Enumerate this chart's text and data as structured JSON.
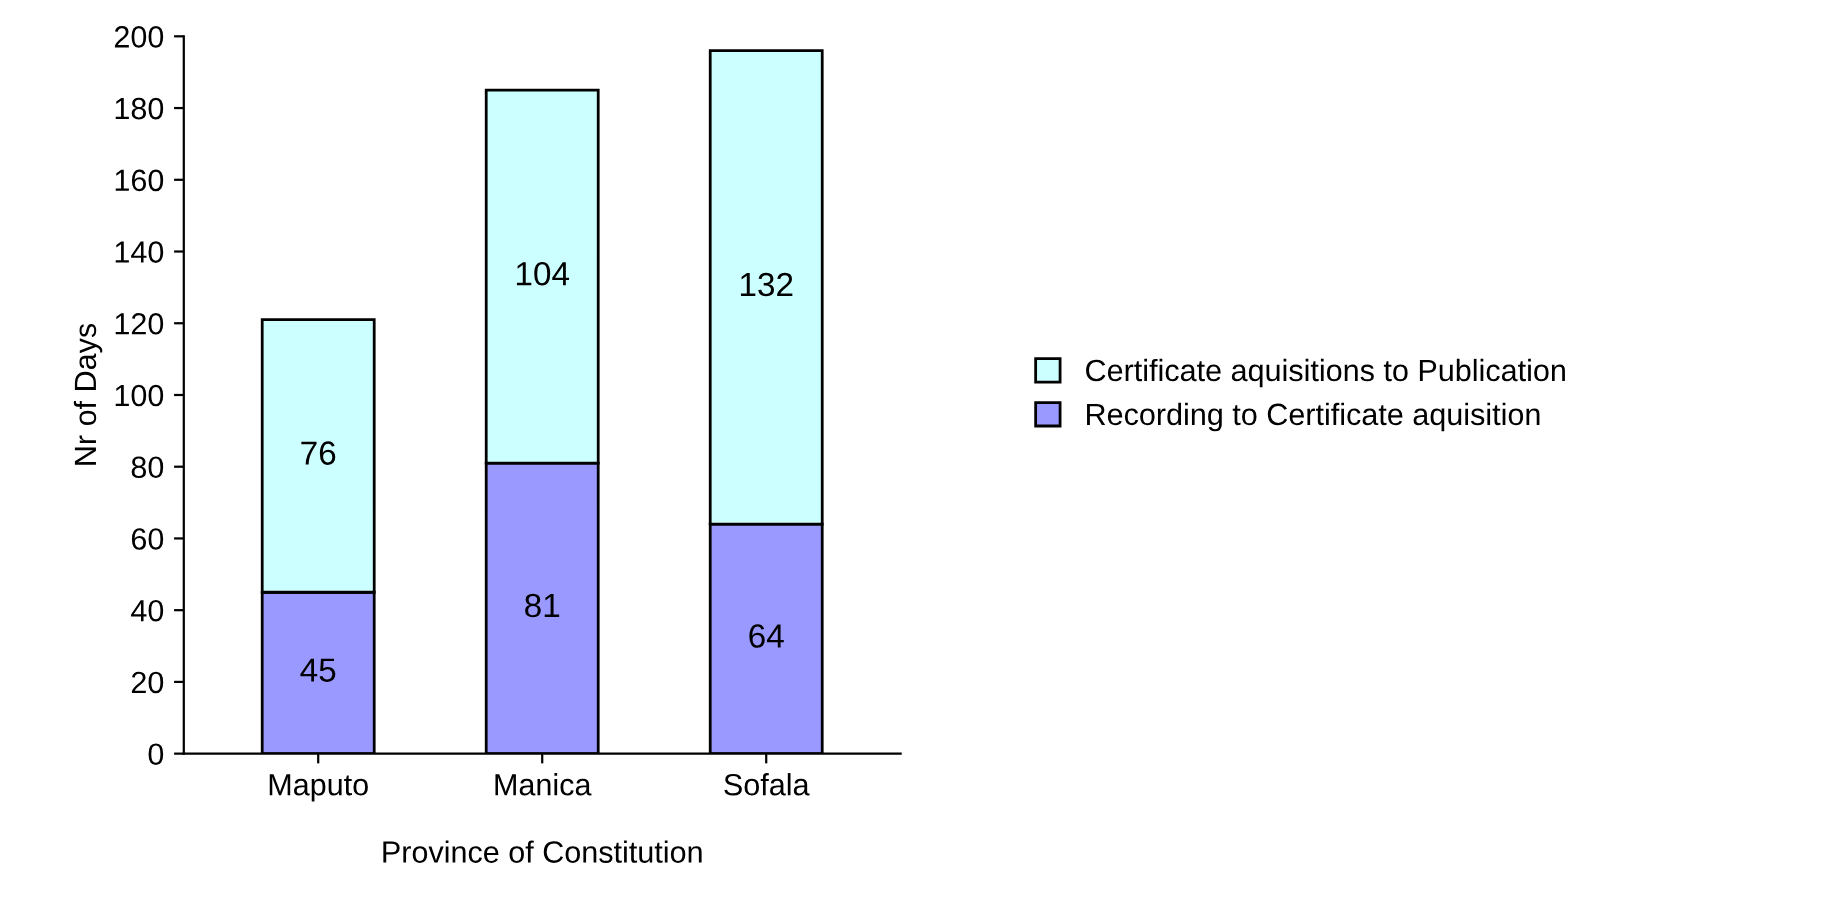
{
  "chart_data": {
    "type": "bar",
    "stacked": true,
    "xlabel": "Province of Constitution",
    "ylabel": "Nr of Days",
    "categories": [
      "Maputo",
      "Manica",
      "Sofala"
    ],
    "series": [
      {
        "name": "Recording to Certificate aquisition",
        "color": "#9999ff",
        "values": [
          45,
          81,
          64
        ]
      },
      {
        "name": "Certificate aquisitions to Publication",
        "color": "#ccffff",
        "values": [
          76,
          104,
          132
        ]
      }
    ],
    "ylim": [
      0,
      200
    ],
    "yticks": [
      0,
      20,
      40,
      60,
      80,
      100,
      120,
      140,
      160,
      180,
      200
    ],
    "data_labels": true,
    "legend": "right",
    "grid": false
  }
}
